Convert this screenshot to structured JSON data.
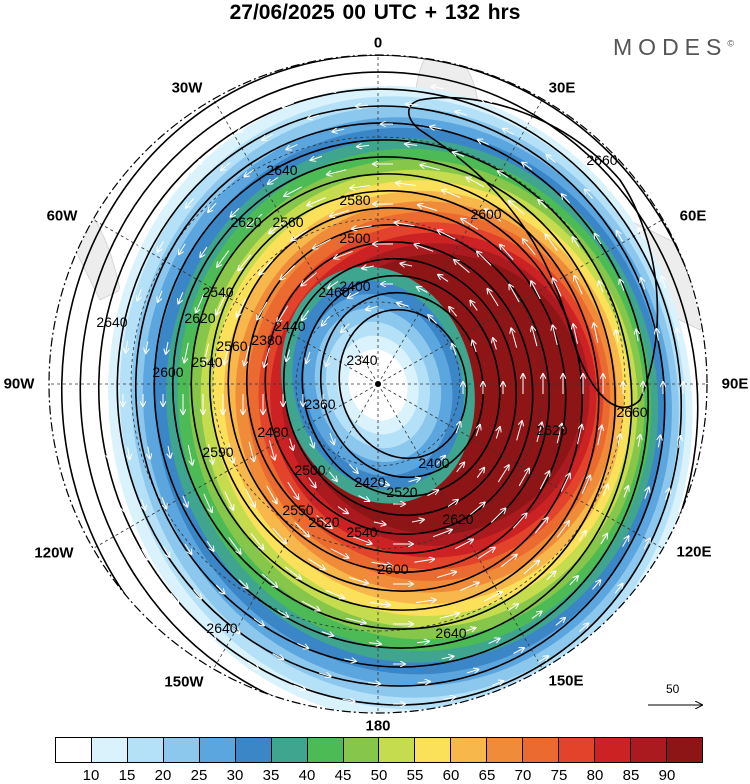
{
  "title": "27/06/2025  00 UTC  + 132 hrs",
  "brand": "MODES",
  "brand_mark": "©",
  "longitude_labels": {
    "n": "0",
    "n30e": "30E",
    "n60e": "60E",
    "e": "90E",
    "s120e": "120E",
    "s150e": "150E",
    "s": "180",
    "s150w": "150W",
    "s120w": "120W",
    "w": "90W",
    "n60w": "60W",
    "n30w": "30W"
  },
  "contour_labels": [
    "2640",
    "2620",
    "2560",
    "2580",
    "2500",
    "2540",
    "2460",
    "2400",
    "2340",
    "2660",
    "2600",
    "2620",
    "2600",
    "2560",
    "2540",
    "2520",
    "2420",
    "2400",
    "2360",
    "2380",
    "2440",
    "2480",
    "2500",
    "2520",
    "2540",
    "2550",
    "2590",
    "2600",
    "2620",
    "2640",
    "2620",
    "2640",
    "2640",
    "2660"
  ],
  "reference_vector": {
    "value": "50"
  },
  "colorbar": {
    "colors": [
      "#ffffff",
      "#d9f2fc",
      "#b4e1f7",
      "#8cc7ee",
      "#5ca6df",
      "#3a86c7",
      "#3fa58f",
      "#4dbb55",
      "#86c64a",
      "#c5dc4f",
      "#fbe15a",
      "#f8b74a",
      "#f08c39",
      "#ea6a2f",
      "#e2432a",
      "#cc2224",
      "#ab1a1e",
      "#8d1515"
    ],
    "ticks": [
      "10",
      "15",
      "20",
      "25",
      "30",
      "35",
      "40",
      "45",
      "50",
      "55",
      "60",
      "65",
      "70",
      "75",
      "80",
      "85",
      "90"
    ]
  },
  "jet_speed_levels": [
    10,
    15,
    20,
    25,
    30,
    35,
    40,
    45,
    50,
    55,
    60,
    65,
    70,
    75,
    80,
    85,
    90
  ]
}
